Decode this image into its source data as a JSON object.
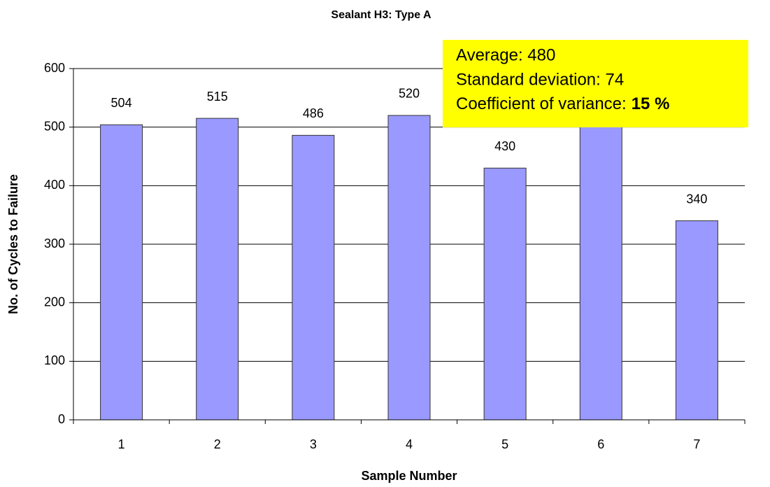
{
  "chart_data": {
    "type": "bar",
    "title": "Sealant H3: Type A",
    "x_label": "Sample Number",
    "y_label": "No. of Cycles to Failure",
    "categories": [
      "1",
      "2",
      "3",
      "4",
      "5",
      "6",
      "7"
    ],
    "values": [
      504,
      515,
      486,
      520,
      430,
      565,
      340
    ],
    "color": "#9999ff",
    "ylim": [
      0,
      600
    ],
    "yticks": [
      0,
      100,
      200,
      300,
      400,
      500,
      600
    ],
    "grid": true,
    "annotation": {
      "lines": [
        "Average: 480",
        "Standard deviation: 74"
      ],
      "last_prefix": "Coefficient of variance:",
      "last_bold": "15 %",
      "color": "#ffff00"
    }
  }
}
